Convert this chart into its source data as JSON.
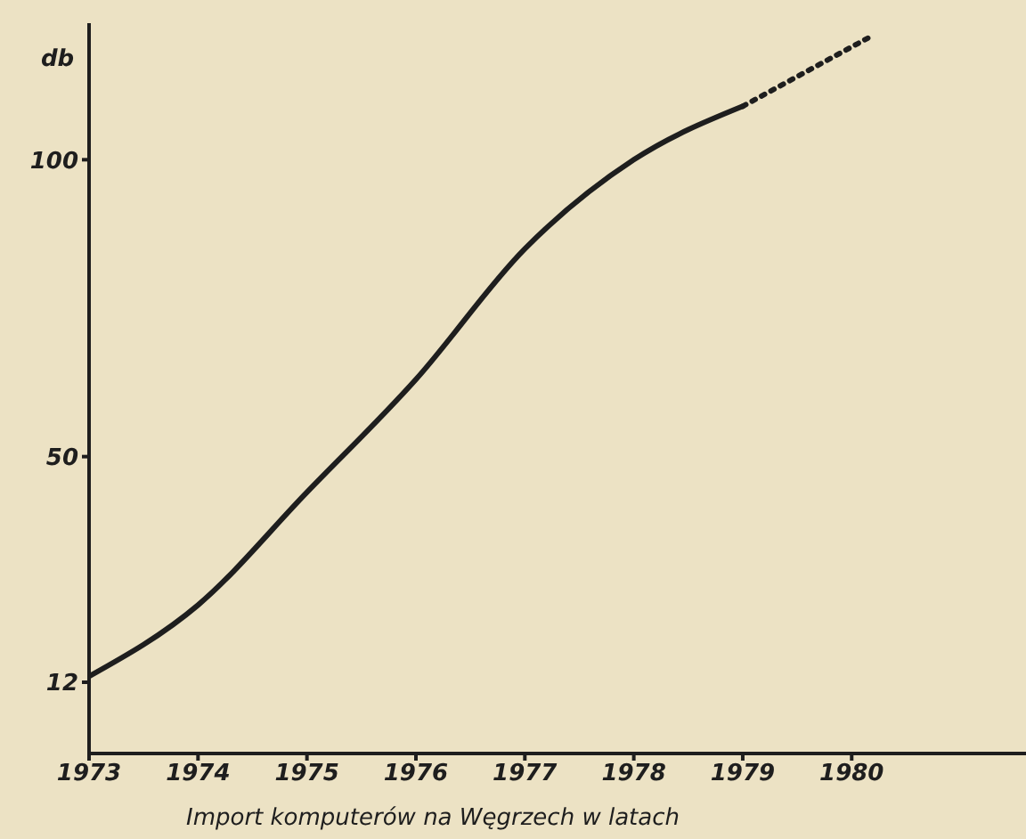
{
  "chart_data": {
    "type": "line",
    "xlabel": "Import komputerów na Węgrzech w latach",
    "ylabel": "db",
    "x": [
      1973,
      1974,
      1975,
      1976,
      1977,
      1978,
      1979
    ],
    "series": [
      {
        "color": "#1e1e1e",
        "values": [
          13,
          25,
          44,
          63,
          85,
          100,
          109
        ],
        "line_style": "solid"
      },
      {
        "color": "#1e1e1e",
        "x": [
          1979,
          1980.2
        ],
        "values": [
          109,
          121
        ],
        "line_style": "dotted"
      }
    ],
    "xlim": [
      1973,
      1981.6
    ],
    "xticks": [
      1973,
      1974,
      1975,
      1976,
      1977,
      1978,
      1979,
      1980
    ],
    "ylim": [
      0,
      123
    ],
    "yticks": [
      12,
      50,
      100
    ],
    "grid": false,
    "legend": false,
    "marker": "none"
  }
}
